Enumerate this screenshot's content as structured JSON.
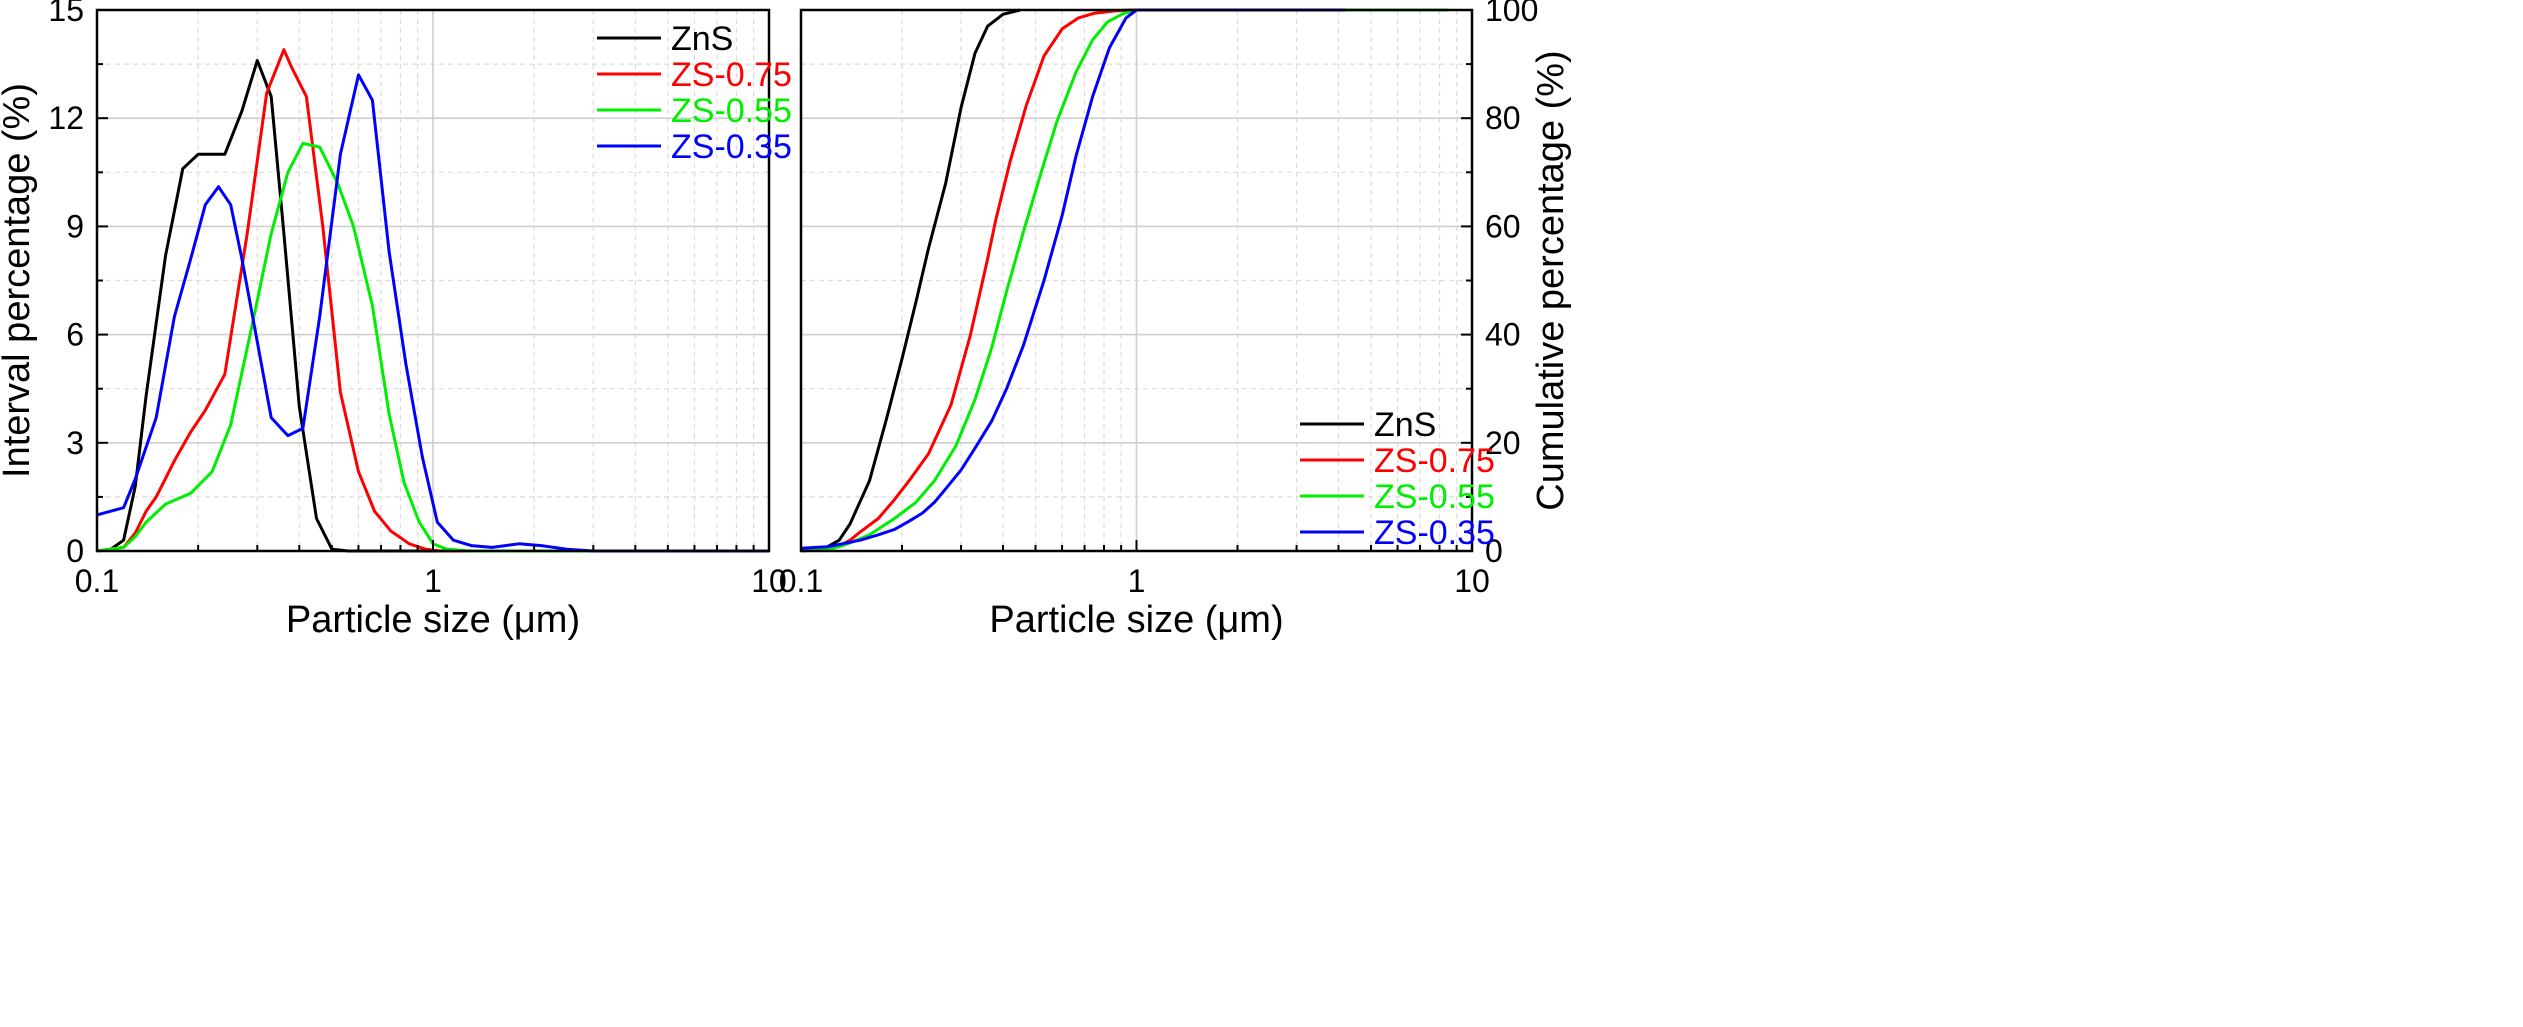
{
  "chart_data": [
    {
      "type": "line",
      "title": "",
      "xlabel": "Particle size (μm)",
      "ylabel": "Interval percentage (%)",
      "xscale": "log",
      "xlim": [
        0.1,
        10
      ],
      "ylim": [
        0,
        15
      ],
      "xticks": [
        0.1,
        1,
        10
      ],
      "xtick_labels": [
        "0.1",
        "1",
        "10"
      ],
      "yticks": [
        0,
        3,
        6,
        9,
        12,
        15
      ],
      "ytick_labels": [
        "0",
        "3",
        "6",
        "9",
        "12",
        "15"
      ],
      "grid": true,
      "legend_position": "top-right",
      "series": [
        {
          "name": "ZnS",
          "color": "#000000",
          "x": [
            0.1,
            0.11,
            0.12,
            0.13,
            0.14,
            0.16,
            0.18,
            0.2,
            0.22,
            0.24,
            0.27,
            0.3,
            0.33,
            0.36,
            0.4,
            0.45,
            0.5,
            0.56,
            0.7,
            1,
            2,
            5,
            10
          ],
          "y": [
            0,
            0.05,
            0.3,
            1.8,
            4.3,
            8.2,
            10.6,
            11.0,
            11.0,
            11.0,
            12.2,
            13.6,
            12.6,
            8.8,
            4.0,
            0.9,
            0.05,
            0,
            0,
            0,
            0,
            0,
            0
          ]
        },
        {
          "name": "ZS-0.75",
          "color": "#ff0000",
          "x": [
            0.1,
            0.12,
            0.13,
            0.14,
            0.15,
            0.17,
            0.19,
            0.21,
            0.24,
            0.28,
            0.32,
            0.36,
            0.38,
            0.42,
            0.47,
            0.53,
            0.6,
            0.67,
            0.75,
            0.85,
            0.95,
            1.05,
            1.2,
            2,
            5,
            10
          ],
          "y": [
            0,
            0.1,
            0.5,
            1.1,
            1.5,
            2.5,
            3.3,
            3.9,
            4.9,
            8.8,
            12.7,
            13.9,
            13.4,
            12.6,
            9.0,
            4.4,
            2.2,
            1.1,
            0.55,
            0.2,
            0.05,
            0,
            0,
            0,
            0,
            0
          ]
        },
        {
          "name": "ZS-0.55",
          "color": "#00ee00",
          "x": [
            0.1,
            0.12,
            0.13,
            0.14,
            0.16,
            0.19,
            0.22,
            0.25,
            0.29,
            0.33,
            0.37,
            0.41,
            0.46,
            0.52,
            0.58,
            0.66,
            0.74,
            0.82,
            0.91,
            1.0,
            1.1,
            1.3,
            2,
            5,
            10
          ],
          "y": [
            0,
            0.1,
            0.4,
            0.8,
            1.3,
            1.6,
            2.2,
            3.5,
            6.3,
            8.8,
            10.5,
            11.3,
            11.2,
            10.2,
            9.0,
            6.8,
            3.8,
            1.9,
            0.8,
            0.2,
            0.05,
            0,
            0,
            0,
            0
          ]
        },
        {
          "name": "ZS-0.35",
          "color": "#0000ff",
          "x": [
            0.1,
            0.12,
            0.13,
            0.15,
            0.17,
            0.19,
            0.21,
            0.23,
            0.25,
            0.27,
            0.3,
            0.33,
            0.37,
            0.41,
            0.46,
            0.53,
            0.6,
            0.66,
            0.74,
            0.83,
            0.93,
            1.03,
            1.15,
            1.3,
            1.5,
            1.8,
            2.1,
            2.5,
            3,
            5,
            10
          ],
          "y": [
            1.0,
            1.2,
            2.0,
            3.7,
            6.5,
            8.1,
            9.6,
            10.1,
            9.6,
            8.1,
            5.8,
            3.7,
            3.2,
            3.4,
            6.5,
            11.0,
            13.2,
            12.5,
            8.3,
            5.2,
            2.6,
            0.8,
            0.3,
            0.15,
            0.1,
            0.2,
            0.15,
            0.05,
            0,
            0,
            0
          ]
        }
      ]
    },
    {
      "type": "line",
      "title": "",
      "xlabel": "Particle size (μm)",
      "ylabel": "Cumulative percentage (%)",
      "xscale": "log",
      "xlim": [
        0.1,
        10
      ],
      "ylim": [
        0,
        100
      ],
      "xticks": [
        0.1,
        1,
        10
      ],
      "xtick_labels": [
        "0.1",
        "1",
        "10"
      ],
      "yticks": [
        0,
        20,
        40,
        60,
        80,
        100
      ],
      "ytick_labels": [
        "0",
        "20",
        "40",
        "60",
        "80",
        "100"
      ],
      "grid": true,
      "legend_position": "bottom-right",
      "series": [
        {
          "name": "ZnS",
          "color": "#000000",
          "x": [
            0.1,
            0.11,
            0.12,
            0.13,
            0.14,
            0.16,
            0.18,
            0.2,
            0.22,
            0.24,
            0.27,
            0.3,
            0.33,
            0.36,
            0.4,
            0.45
          ],
          "y": [
            0,
            0.3,
            0.8,
            2.0,
            5.0,
            13.0,
            24.5,
            35.5,
            46.0,
            56.0,
            68.0,
            82.0,
            92.0,
            97.0,
            99.2,
            100
          ]
        },
        {
          "name": "ZS-0.75",
          "color": "#ff0000",
          "x": [
            0.1,
            0.12,
            0.13,
            0.14,
            0.15,
            0.17,
            0.19,
            0.21,
            0.24,
            0.28,
            0.32,
            0.36,
            0.38,
            0.42,
            0.47,
            0.53,
            0.6,
            0.67,
            0.75,
            0.85,
            0.95,
            1.05
          ],
          "y": [
            0,
            0.3,
            0.9,
            2.0,
            3.5,
            6.0,
            9.5,
            13.0,
            18.0,
            27.0,
            40.0,
            54.0,
            61.0,
            72.0,
            82.5,
            91.5,
            96.5,
            98.5,
            99.4,
            99.8,
            100,
            100
          ]
        },
        {
          "name": "ZS-0.55",
          "color": "#00ee00",
          "x": [
            0.1,
            0.12,
            0.13,
            0.14,
            0.16,
            0.19,
            0.22,
            0.25,
            0.29,
            0.33,
            0.37,
            0.41,
            0.46,
            0.52,
            0.58,
            0.66,
            0.74,
            0.82,
            0.91,
            1.0,
            2,
            5,
            8.5
          ],
          "y": [
            0,
            0.3,
            0.8,
            1.5,
            3.0,
            6.0,
            9.0,
            13.0,
            19.5,
            28.0,
            37.5,
            48.0,
            59.0,
            70.0,
            79.5,
            88.5,
            94.5,
            97.8,
            99.3,
            100,
            100,
            100,
            100
          ]
        },
        {
          "name": "ZS-0.35",
          "color": "#0000ff",
          "x": [
            0.1,
            0.12,
            0.13,
            0.15,
            0.17,
            0.19,
            0.21,
            0.23,
            0.25,
            0.27,
            0.3,
            0.33,
            0.37,
            0.41,
            0.46,
            0.53,
            0.6,
            0.66,
            0.74,
            0.83,
            0.93,
            1.0,
            2,
            4.2
          ],
          "y": [
            0.5,
            0.8,
            1.2,
            2.0,
            3.0,
            4.0,
            5.5,
            7.0,
            9.0,
            11.5,
            15.0,
            19.0,
            24.0,
            30.0,
            38.0,
            50.0,
            62.0,
            73.0,
            84.0,
            93.0,
            98.5,
            100,
            100,
            100
          ]
        }
      ]
    }
  ]
}
